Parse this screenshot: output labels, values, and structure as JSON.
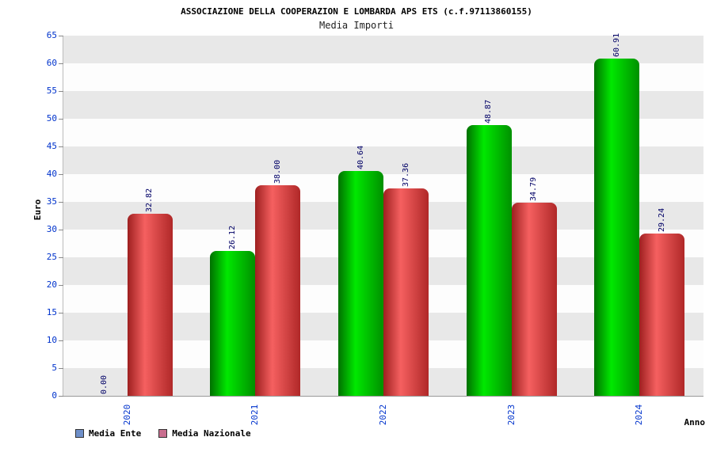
{
  "chart_data": {
    "type": "bar",
    "title": "ASSOCIAZIONE DELLA COOPERAZION E LOMBARDA APS ETS (c.f.97113860155)",
    "subtitle": "Media Importi",
    "xlabel": "Anno",
    "ylabel": "Euro",
    "categories": [
      "2020",
      "2021",
      "2022",
      "2023",
      "2024"
    ],
    "series": [
      {
        "name": "Media Ente",
        "values": [
          0.0,
          26.12,
          40.64,
          48.87,
          60.91
        ]
      },
      {
        "name": "Media Nazionale",
        "values": [
          32.82,
          38.0,
          37.36,
          34.79,
          29.24
        ]
      }
    ],
    "ylim": [
      0,
      65
    ],
    "ytick_step": 5,
    "grid": "banded",
    "legend_position": "bottom-left",
    "value_label_format": "2-decimals",
    "label_rotation": "vertical"
  },
  "colors": {
    "bar_ente": [
      "#007000",
      "#00e800",
      "#009000"
    ],
    "bar_nazionale": [
      "#9e2020",
      "#f56060",
      "#b02828"
    ],
    "legend_ente": "#6e8fc9",
    "legend_nazionale": "#c96e8f",
    "axis_label": "#0033cc",
    "value_label": "#000066",
    "band_gray": "#e8e8e8",
    "band_light": "#fdfdfd"
  }
}
